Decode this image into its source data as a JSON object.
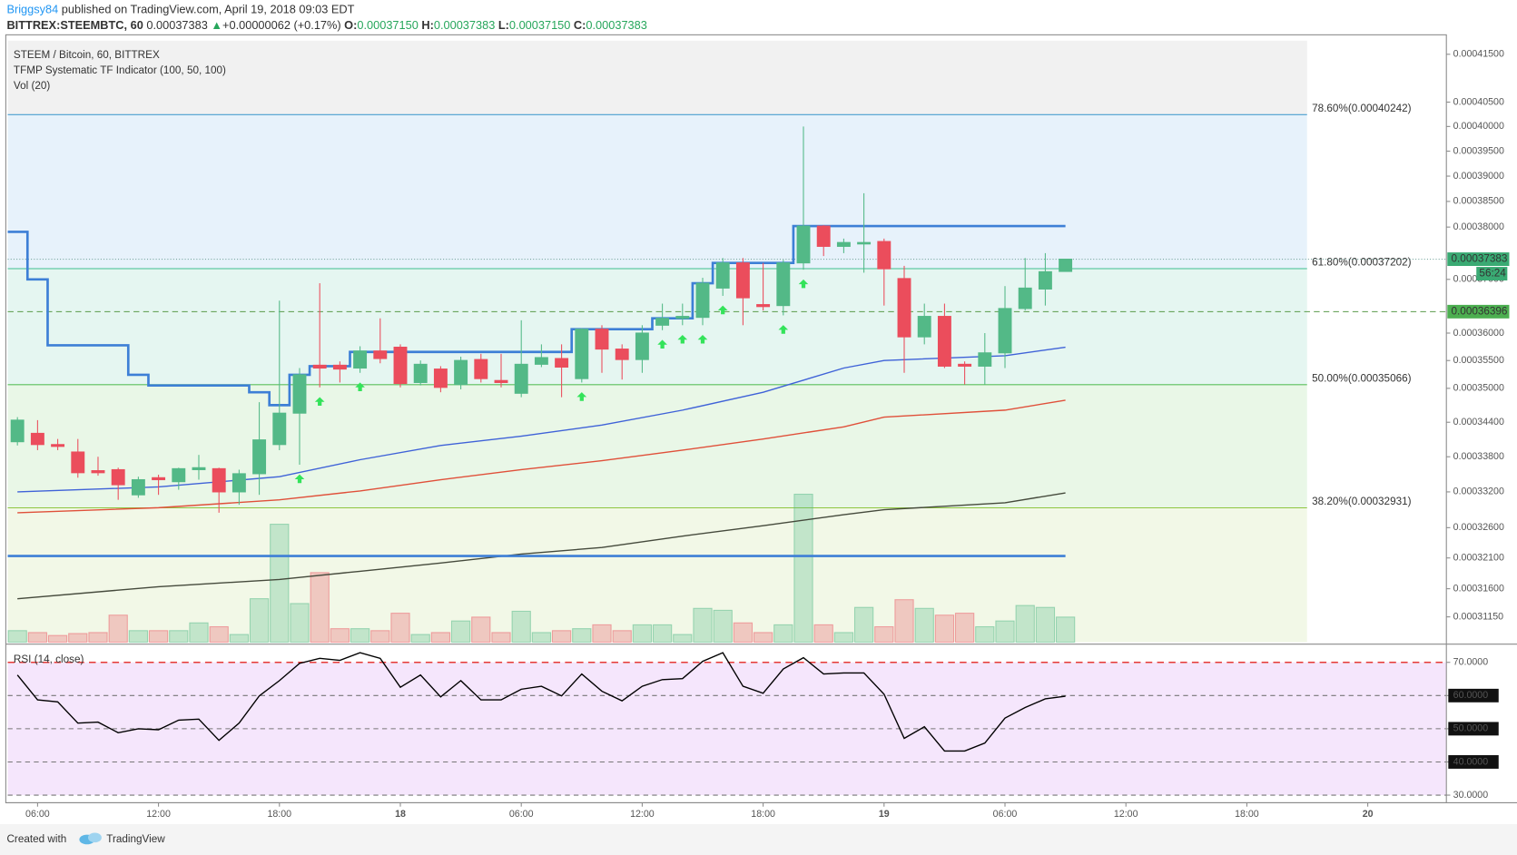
{
  "header": {
    "author": "Briggsy84",
    "published": "published on TradingView.com, April 19, 2018 09:03 EDT",
    "symbol": "BITTREX:STEEMBTC, 60",
    "last": "0.00037383",
    "arrow": "▲",
    "change": "+0.00000062 (+0.17%)",
    "o_label": "O:",
    "o": "0.00037150",
    "h_label": "H:",
    "h": "0.00037383",
    "l_label": "L:",
    "l": "0.00037150",
    "c_label": "C:",
    "c": "0.00037383"
  },
  "footer": {
    "created": "Created with",
    "brand": "TradingView"
  },
  "chart_data": [
    {
      "type": "candlestick",
      "legend": [
        "STEEM / Bitcoin, 60, BITTREX",
        "TFMP Systematic TF Indicator (100, 50, 100)",
        "Vol (20)"
      ],
      "log_scale": true,
      "xlim": [
        -0.48,
        70.9
      ],
      "ylim": [
        0.0003075,
        0.0004179
      ],
      "yticks": [
        {
          "value": 0.000415,
          "label": "0.00041500"
        },
        {
          "value": 0.000405,
          "label": "0.00040500"
        },
        {
          "value": 0.0004,
          "label": "0.00040000"
        },
        {
          "value": 0.000395,
          "label": "0.00039500"
        },
        {
          "value": 0.00039,
          "label": "0.00039000"
        },
        {
          "value": 0.000385,
          "label": "0.00038500"
        },
        {
          "value": 0.00038,
          "label": "0.00038000"
        },
        {
          "value": 0.00037,
          "label": "0.00037000"
        },
        {
          "value": 0.00036,
          "label": "0.00036000"
        },
        {
          "value": 0.000355,
          "label": "0.00035500"
        },
        {
          "value": 0.00035,
          "label": "0.00035000"
        },
        {
          "value": 0.000344,
          "label": "0.00034400"
        },
        {
          "value": 0.000338,
          "label": "0.00033800"
        },
        {
          "value": 0.000332,
          "label": "0.00033200"
        },
        {
          "value": 0.000326,
          "label": "0.00032600"
        },
        {
          "value": 0.000321,
          "label": "0.00032100"
        },
        {
          "value": 0.000316,
          "label": "0.00031600"
        },
        {
          "value": 0.0003115,
          "label": "0.00031150"
        }
      ],
      "up_color": "#53b987",
      "down_color": "#eb4d5c",
      "open": [
        0.0003406,
        0.00034206,
        0.00034011,
        0.00033882,
        0.00033561,
        0.00033578,
        0.0003315,
        0.00033441,
        0.00033373,
        0.00033578,
        0.00033595,
        0.000332,
        0.00033509,
        0.00034011,
        0.0003456,
        0.00035415,
        0.00035415,
        0.00035364,
        0.00035673,
        0.00035742,
        0.00035104,
        0.00035346,
        0.00035069,
        0.00035518,
        0.0003514,
        0.00034912,
        0.00035432,
        0.00035536,
        0.00035174,
        0.00036072,
        0.00035708,
        0.00035518,
        0.00036145,
        0.00036272,
        0.0003629,
        0.00036836,
        0.00037312,
        0.00036527,
        0.00036509,
        0.00037312,
        0.00038019,
        0.00037628,
        0.00037684,
        0.00037721,
        0.00037015,
        0.00035931,
        0.00036308,
        0.00035432,
        0.00035398,
        0.00035639,
        0.00036454,
        0.00036818,
        0.0003715
      ],
      "high": [
        0.0003449,
        0.00034437,
        0.00034108,
        0.00034108,
        0.000338,
        0.00033612,
        0.00033458,
        0.00033492,
        0.00033612,
        0.00033832,
        0.00033612,
        0.00033578,
        0.00034754,
        0.000366,
        0.00035364,
        0.00036927,
        0.00035484,
        0.00035759,
        0.00036272,
        0.00035794,
        0.00035501,
        0.00035398,
        0.0003557,
        0.00035622,
        0.00035622,
        0.00036236,
        0.00035794,
        0.00035794,
        0.0003609,
        0.00036145,
        0.00035794,
        0.00036145,
        0.00036545,
        0.00036545,
        0.0003703,
        0.00037405,
        0.00037405,
        0.00037312,
        0.00037368,
        0.0004,
        0.00038038,
        0.00037777,
        0.00038661,
        0.00037777,
        0.00037256,
        0.00036545,
        0.00036545,
        0.00035484,
        0.00036,
        0.00036873,
        0.00037405,
        0.00037498,
        0.00037383
      ],
      "low": [
        0.00033995,
        0.00033914,
        0.00033914,
        0.00033441,
        0.00033475,
        0.00033066,
        0.000331,
        0.0003315,
        0.00033236,
        0.00033407,
        0.00032849,
        0.00032983,
        0.0003315,
        0.00033914,
        0.00033663,
        0.00035017,
        0.00035104,
        0.00035278,
        0.0003545,
        0.00035017,
        0.00035052,
        0.0003493,
        0.00034982,
        0.00035104,
        0.00035017,
        0.00034842,
        0.00035381,
        0.00034842,
        0.00035104,
        0.00035278,
        0.00035157,
        0.00035278,
        0.00036054,
        0.00036145,
        0.00036145,
        0.0003669,
        0.00036145,
        0.00036418,
        0.00036327,
        0.00037182,
        0.00037442,
        0.00037498,
        0.00037126,
        0.00036509,
        0.00035278,
        0.00035794,
        0.00035364,
        0.00035069,
        0.00035069,
        0.00035364,
        0.00036418,
        0.00036509,
        0.0003715
      ],
      "close": [
        0.00034437,
        0.00034011,
        0.00033979,
        0.00033526,
        0.00033526,
        0.00033321,
        0.00033407,
        0.00033407,
        0.00033595,
        0.00033612,
        0.000332,
        0.00033509,
        0.00034092,
        0.0003456,
        0.00035243,
        0.00035364,
        0.00035346,
        0.00035673,
        0.00035536,
        0.00035086,
        0.00035432,
        0.00035017,
        0.00035501,
        0.00035174,
        0.00035104,
        0.00035432,
        0.00035553,
        0.00035381,
        0.00036072,
        0.00035708,
        0.00035518,
        0.00036,
        0.00036272,
        0.00036308,
        0.00036927,
        0.00037312,
        0.00036654,
        0.0003649,
        0.00037312,
        0.00038019,
        0.00037628,
        0.00037702,
        0.00037702,
        0.000372,
        0.00035931,
        0.00036308,
        0.00035398,
        0.00035398,
        0.00035639,
        0.00036454,
        0.00036836,
        0.00037144,
        0.00037383
      ],
      "volume": [
        12,
        10,
        7,
        9,
        10,
        28,
        12,
        12,
        12,
        20,
        16,
        8,
        45,
        122,
        40,
        72,
        14,
        14,
        12,
        30,
        8,
        10,
        22,
        26,
        10,
        32,
        10,
        12,
        14,
        18,
        12,
        18,
        18,
        8,
        35,
        33,
        20,
        10,
        18,
        153,
        18,
        10,
        36,
        16,
        44,
        35,
        28,
        30,
        16,
        22,
        38,
        36,
        26
      ],
      "series": [
        {
          "color": "#3f62d8",
          "x": [
            0,
            7,
            13,
            17,
            21,
            25,
            29,
            33,
            37,
            41,
            43,
            49,
            52
          ],
          "values": [
            0.000332,
            0.00033284,
            0.00033458,
            0.00033749,
            0.00033995,
            0.00034157,
            0.00034351,
            0.00034613,
            0.0003493,
            0.00035364,
            0.00035501,
            0.00035587,
            0.00035742
          ]
        },
        {
          "color": "#e0503a",
          "x": [
            0,
            7,
            13,
            17,
            21,
            25,
            29,
            33,
            37,
            41,
            43,
            49,
            52
          ],
          "values": [
            0.00032849,
            0.00032933,
            0.00033066,
            0.00033216,
            0.00033407,
            0.00033578,
            0.00033732,
            0.00033914,
            0.00034108,
            0.00034319,
            0.0003449,
            0.00034613,
            0.00034789
          ]
        },
        {
          "color": "#454a3c",
          "x": [
            0,
            7,
            13,
            17,
            21,
            25,
            29,
            33,
            37,
            41,
            43,
            49,
            52
          ],
          "values": [
            0.00031439,
            0.00031633,
            0.0003175,
            0.00031883,
            0.00032017,
            0.00032163,
            0.00032272,
            0.0003246,
            0.00032633,
            0.00032816,
            0.00032899,
            0.00033016,
            0.00033183
          ]
        }
      ],
      "steps": {
        "color": "#3d7fd6",
        "values": [
          0.00037907,
          0.00037,
          0.00035776,
          0.00035776,
          0.00035776,
          0.00035776,
          0.00035243,
          0.00035052,
          0.00035052,
          0.00035052,
          0.00035052,
          0.00035052,
          0.0003493,
          0.00034701,
          0.00035243,
          0.00035398,
          0.00035398,
          0.00035656,
          0.00035656,
          0.00035656,
          0.00035656,
          0.00035656,
          0.00035656,
          0.00035656,
          0.00035656,
          0.00035656,
          0.00035656,
          0.00035656,
          0.00036072,
          0.00036072,
          0.00036072,
          0.00036072,
          0.00036272,
          0.00036272,
          0.00036927,
          0.00037312,
          0.00037312,
          0.00037312,
          0.00037312,
          0.00038019,
          0.00038019,
          0.00038019,
          0.00038019,
          0.00038019,
          0.00038019,
          0.00038019,
          0.00038019,
          0.00038019,
          0.00038019,
          0.00038019,
          0.00038019,
          0.00038019,
          0.00038019
        ]
      },
      "support": {
        "color": "#3d7fd6",
        "value": 0.00032132
      },
      "signals": {
        "color": "#33e35a",
        "x": [
          14,
          15,
          17,
          28,
          32,
          33,
          34,
          35,
          38,
          39
        ]
      },
      "fib_levels": [
        {
          "label": "78.60%(0.00040242)",
          "value": 0.00040242,
          "color": "#4a9fd0",
          "fill": "#e7f2fb"
        },
        {
          "label": "61.80%(0.00037202)",
          "value": 0.00037202,
          "color": "#3fbf8f",
          "fill": "#e5f6f1"
        },
        {
          "label": "50.00%(0.00035066)",
          "value": 0.00035066,
          "color": "#5cbf5c",
          "fill": "#e9f7e7"
        },
        {
          "label": "38.20%(0.00032931)",
          "value": 0.00032931,
          "color": "#8fc641",
          "fill": "#f2f8e7"
        }
      ],
      "price_tags": [
        {
          "label": "0.00037383",
          "value": 0.00037383,
          "color": "#3aaa73",
          "line": "dotted",
          "countdown": "56:24"
        },
        {
          "label": "0.00036396",
          "value": 0.00036396,
          "color": "#4caf50",
          "line": "dashed"
        }
      ]
    },
    {
      "type": "line",
      "title": "RSI (14, close)",
      "color": "#000000",
      "xlim": [
        -0.48,
        70.9
      ],
      "xticks": [
        {
          "value": 1,
          "label": "06:00"
        },
        {
          "value": 7,
          "label": "12:00"
        },
        {
          "value": 13,
          "label": "18:00"
        },
        {
          "value": 19,
          "label": "18"
        },
        {
          "value": 25,
          "label": "06:00"
        },
        {
          "value": 31,
          "label": "12:00"
        },
        {
          "value": 37,
          "label": "18:00"
        },
        {
          "value": 43,
          "label": "19"
        },
        {
          "value": 49,
          "label": "06:00"
        },
        {
          "value": 55,
          "label": "12:00"
        },
        {
          "value": 61,
          "label": "18:00"
        },
        {
          "value": 67,
          "label": "20"
        }
      ],
      "ylim": [
        27.7,
        74.9
      ],
      "yticks": [
        {
          "value": 70,
          "label": "70.0000"
        },
        {
          "value": 60,
          "label": "60.0000"
        },
        {
          "value": 50,
          "label": "50.0000"
        },
        {
          "value": 40,
          "label": "40.0000"
        },
        {
          "value": 30,
          "label": "30.0000"
        }
      ],
      "values": [
        66.2,
        58.7,
        58.1,
        51.7,
        52.0,
        48.8,
        50.0,
        49.7,
        52.6,
        52.9,
        46.5,
        51.7,
        59.9,
        64.5,
        69.7,
        71.2,
        70.6,
        72.9,
        71.2,
        62.5,
        66.2,
        59.6,
        64.5,
        58.7,
        58.7,
        61.9,
        62.8,
        59.9,
        66.5,
        61.3,
        58.4,
        62.8,
        64.8,
        65.1,
        70.3,
        72.9,
        62.8,
        60.7,
        68.0,
        71.4,
        66.5,
        66.8,
        66.8,
        60.4,
        47.1,
        50.6,
        43.3,
        43.3,
        45.7,
        53.2,
        56.4,
        59.0,
        59.8
      ]
    }
  ]
}
